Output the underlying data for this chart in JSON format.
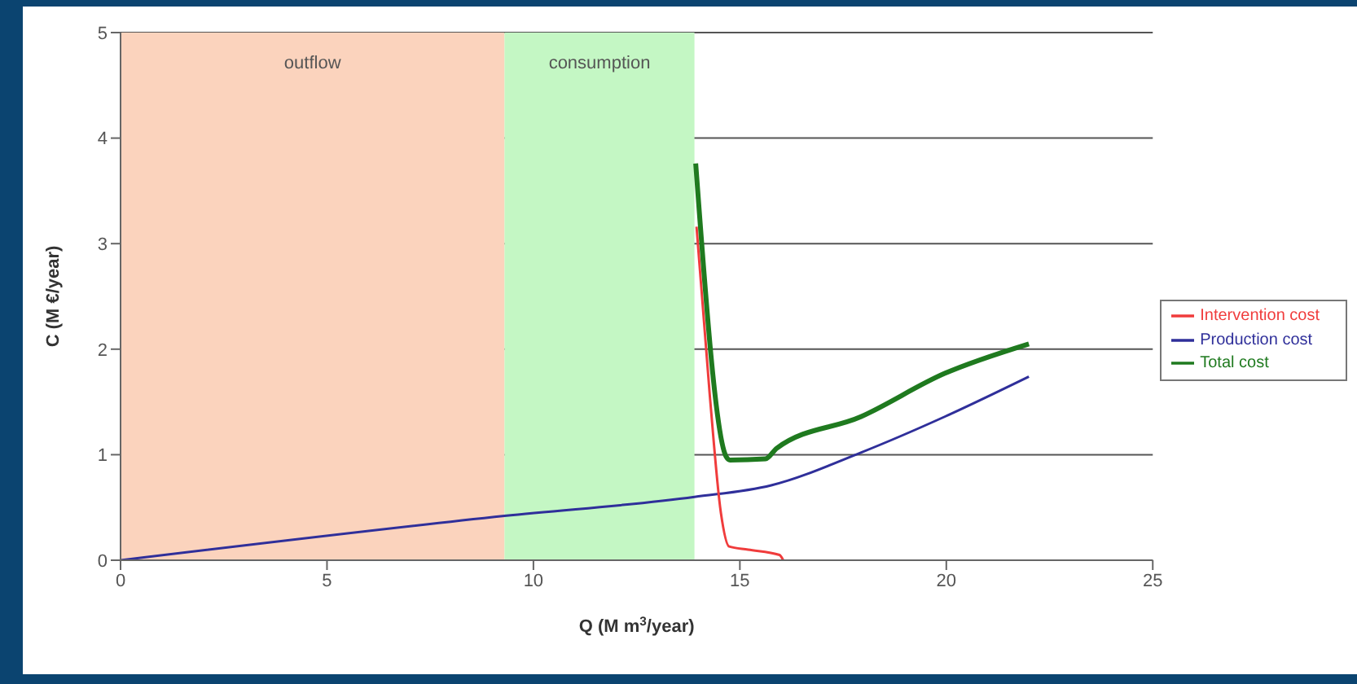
{
  "chart_data": {
    "type": "line",
    "xlabel": "Q (M m$^{3}$/year)",
    "ylabel": "C (M €/year)",
    "xlim": [
      0,
      25
    ],
    "xticks": [
      0,
      5,
      10,
      15,
      20,
      25
    ],
    "ylim": [
      0,
      5
    ],
    "yticks": [
      0,
      1,
      2,
      3,
      4,
      5
    ],
    "grid": "y",
    "legend": "right",
    "line_style": "solid",
    "marker": "none",
    "bands": [
      {
        "axis": "x",
        "from": 0,
        "to": 9.3,
        "label": "outflow",
        "color": "#fbd3bd"
      },
      {
        "axis": "x",
        "from": 9.3,
        "to": 13.9,
        "label": "consumption",
        "color": "#c4f7c4"
      }
    ],
    "series": [
      {
        "name": "Production cost",
        "color": "#2f2f9a",
        "x": [
          0,
          9.3,
          13.9,
          15.76,
          17.93,
          19.96,
          22.0
        ],
        "values": [
          0,
          0.42,
          0.6,
          0.71,
          1.02,
          1.36,
          1.74
        ]
      },
      {
        "name": "Intervention cost",
        "color": "#f03c3c",
        "x": [
          13.95,
          14.27,
          14.54,
          14.74,
          15.2,
          15.96,
          16.05
        ],
        "values": [
          3.16,
          1.57,
          0.45,
          0.13,
          0.1,
          0.05,
          0.0
        ]
      },
      {
        "name": "Total cost",
        "color": "#1f7a1f",
        "x": [
          13.93,
          14.67,
          14.76,
          15.62,
          15.89,
          17.93,
          19.96,
          22.0
        ],
        "values": [
          3.76,
          0.98,
          0.95,
          0.96,
          1.06,
          1.36,
          1.77,
          2.05
        ]
      }
    ]
  }
}
